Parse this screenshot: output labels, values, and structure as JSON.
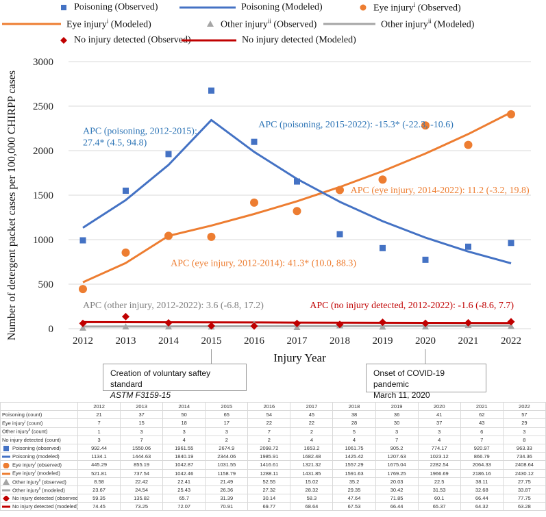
{
  "legend": [
    {
      "key": "poison_obs",
      "label": "Poisoning (Observed)",
      "sup": "",
      "marker": "square",
      "color": "#4472C4"
    },
    {
      "key": "poison_mod",
      "label": "Poisoning (Modeled)",
      "sup": "",
      "marker": "line",
      "color": "#4472C4"
    },
    {
      "key": "eye_obs",
      "label": "Eye injury",
      "sup": "i",
      "suffix": " (Observed)",
      "marker": "circle",
      "color": "#ED7D31"
    },
    {
      "key": "eye_mod",
      "label": "Eye injury",
      "sup": "i",
      "suffix": " (Modeled)",
      "marker": "line",
      "color": "#ED7D31"
    },
    {
      "key": "other_obs",
      "label": "Other injury",
      "sup": "ii",
      "suffix": " (Observed)",
      "marker": "triangle",
      "color": "#A5A5A5"
    },
    {
      "key": "other_mod",
      "label": "Other injury",
      "sup": "ii",
      "suffix": " (Modeled)",
      "marker": "line",
      "color": "#A5A5A5"
    },
    {
      "key": "noinj_obs",
      "label": "No injury detected (Observed)",
      "sup": "",
      "marker": "diamond",
      "color": "#C00000"
    },
    {
      "key": "noinj_mod",
      "label": "No injury detected (Modeled)",
      "sup": "",
      "marker": "line",
      "color": "#C00000"
    }
  ],
  "chart_data": {
    "type": "line",
    "x": [
      2012,
      2013,
      2014,
      2015,
      2016,
      2017,
      2018,
      2019,
      2020,
      2021,
      2022
    ],
    "xlabel": "Injury Year",
    "ylabel": "Number of detergent packet cases per 100,000 CHIRPP cases",
    "ylim": [
      0,
      3000
    ],
    "yticks": [
      0,
      500,
      1000,
      1500,
      2000,
      2500,
      3000
    ],
    "series": [
      {
        "name": "Poisoning (Observed)",
        "kind": "scatter",
        "marker": "square",
        "color": "#4472C4",
        "values": [
          992.44,
          1550.06,
          1961.55,
          2674.9,
          2098.72,
          1653.2,
          1061.75,
          905.2,
          774.17,
          920.97,
          963.33
        ]
      },
      {
        "name": "Poisoning (Modeled)",
        "kind": "line",
        "color": "#4472C4",
        "values": [
          1134.1,
          1444.63,
          1840.19,
          2344.06,
          1985.91,
          1682.48,
          1425.42,
          1207.63,
          1023.12,
          866.79,
          734.36
        ]
      },
      {
        "name": "Eye injury (Observed)",
        "kind": "scatter",
        "marker": "circle",
        "color": "#ED7D31",
        "values": [
          445.29,
          855.19,
          1042.87,
          1031.55,
          1416.61,
          1321.32,
          1557.29,
          1675.04,
          2282.54,
          2064.33,
          2408.64
        ]
      },
      {
        "name": "Eye injury (Modeled)",
        "kind": "line",
        "color": "#ED7D31",
        "values": [
          521.81,
          737.54,
          1042.46,
          1158.79,
          1288.11,
          1431.85,
          1591.63,
          1769.25,
          1966.69,
          2186.16,
          2430.12
        ]
      },
      {
        "name": "Other injury (Observed)",
        "kind": "scatter",
        "marker": "triangle",
        "color": "#A5A5A5",
        "values": [
          8.58,
          22.42,
          22.41,
          21.49,
          52.55,
          15.02,
          35.2,
          20.03,
          22.5,
          38.11,
          27.75
        ]
      },
      {
        "name": "Other injury (Modeled)",
        "kind": "line",
        "color": "#A5A5A5",
        "values": [
          23.67,
          24.54,
          25.43,
          26.36,
          27.32,
          28.32,
          29.35,
          30.42,
          31.53,
          32.68,
          33.87
        ]
      },
      {
        "name": "No injury detected (Observed)",
        "kind": "scatter",
        "marker": "diamond",
        "color": "#C00000",
        "values": [
          59.35,
          135.82,
          65.7,
          31.39,
          30.14,
          58.3,
          47.64,
          71.85,
          60.1,
          66.44,
          77.75
        ]
      },
      {
        "name": "No injury detected (Modeled)",
        "kind": "line",
        "color": "#C00000",
        "values": [
          74.45,
          73.25,
          72.07,
          70.91,
          69.77,
          68.64,
          67.53,
          66.44,
          65.37,
          64.32,
          63.28
        ]
      }
    ],
    "annotations": [
      {
        "lines": [
          "APC (poisoning, 2012-2015):",
          "27.4* (4.5, 94.8)"
        ],
        "color": "#2E75B6",
        "at_year": 2012,
        "at_value": 2190
      },
      {
        "lines": [
          "APC (poisoning, 2015-2022): -15.3* (-22.3, -10.6)"
        ],
        "color": "#2E75B6",
        "at_year": 2016.1,
        "at_value": 2260
      },
      {
        "lines": [
          "APC (eye injury, 2014-2022): 11.2 (-3.2, 19.8)"
        ],
        "color": "#ED7D31",
        "at_year": 2018.25,
        "at_value": 1525
      },
      {
        "lines": [
          "APC (eye injury, 2012-2014): 41.3* (10.0, 88.3)"
        ],
        "color": "#ED7D31",
        "at_year": 2014.05,
        "at_value": 705
      },
      {
        "lines": [
          "APC (other injury, 2012-2022): 3.6 (-6.8, 17.2)"
        ],
        "color": "#7F7F7F",
        "at_year": 2012,
        "at_value": 230
      },
      {
        "lines": [
          "APC (no injury detected, 2012-2022): -1.6 (-8.6, 7.7)"
        ],
        "color": "#C00000",
        "at_year": 2017.3,
        "at_value": 230
      }
    ]
  },
  "callouts": {
    "standard": {
      "line1": "Creation of voluntary saftey standard",
      "line2": "ASTM F3159-15"
    },
    "covid": {
      "line1": "Onset of COVID-19 pandemic",
      "line2": "March 11, 2020"
    }
  },
  "table": {
    "years": [
      "2012",
      "2013",
      "2014",
      "2015",
      "2016",
      "2017",
      "2018",
      "2019",
      "2020",
      "2021",
      "2022"
    ],
    "rows": [
      {
        "label": "Poisoning (count)",
        "sup": "",
        "suffix": "",
        "marker": "",
        "color": "",
        "cells": [
          "21",
          "37",
          "50",
          "65",
          "54",
          "45",
          "38",
          "36",
          "41",
          "62",
          "57"
        ]
      },
      {
        "label": "Eye injury",
        "sup": "i",
        "suffix": " (count)",
        "marker": "",
        "color": "",
        "cells": [
          "7",
          "15",
          "18",
          "17",
          "22",
          "22",
          "28",
          "30",
          "37",
          "43",
          "29"
        ]
      },
      {
        "label": "Other injury",
        "sup": "ii",
        "suffix": " (count)",
        "marker": "",
        "color": "",
        "cells": [
          "1",
          "3",
          "3",
          "3",
          "7",
          "2",
          "5",
          "3",
          "3",
          "6",
          "3"
        ]
      },
      {
        "label": "No injury detected (count)",
        "sup": "",
        "suffix": "",
        "marker": "",
        "color": "",
        "cells": [
          "3",
          "7",
          "4",
          "2",
          "2",
          "4",
          "4",
          "7",
          "4",
          "7",
          "8"
        ]
      },
      {
        "label": "Poisoning (observed)",
        "sup": "",
        "suffix": "",
        "marker": "square",
        "color": "#4472C4",
        "cells": [
          "992.44",
          "1550.06",
          "1961.55",
          "2674.9",
          "2098.72",
          "1653.2",
          "1061.75",
          "905.2",
          "774.17",
          "920.97",
          "963.33"
        ]
      },
      {
        "label": "Poisoning (modeled)",
        "sup": "",
        "suffix": "",
        "marker": "line",
        "color": "#4472C4",
        "cells": [
          "1134.1",
          "1444.63",
          "1840.19",
          "2344.06",
          "1985.91",
          "1682.48",
          "1425.42",
          "1207.63",
          "1023.12",
          "866.79",
          "734.36"
        ]
      },
      {
        "label": "Eye injury",
        "sup": "i",
        "suffix": " (observed)",
        "marker": "circle",
        "color": "#ED7D31",
        "cells": [
          "445.29",
          "855.19",
          "1042.87",
          "1031.55",
          "1416.61",
          "1321.32",
          "1557.29",
          "1675.04",
          "2282.54",
          "2064.33",
          "2408.64"
        ]
      },
      {
        "label": "Eye injury",
        "sup": "i",
        "suffix": " (modeled)",
        "marker": "line",
        "color": "#ED7D31",
        "cells": [
          "521.81",
          "737.54",
          "1042.46",
          "1158.79",
          "1288.11",
          "1431.85",
          "1591.63",
          "1769.25",
          "1966.69",
          "2186.16",
          "2430.12"
        ]
      },
      {
        "label": "Other injury",
        "sup": "ii",
        "suffix": " (observed)",
        "marker": "triangle",
        "color": "#A5A5A5",
        "cells": [
          "8.58",
          "22.42",
          "22.41",
          "21.49",
          "52.55",
          "15.02",
          "35.2",
          "20.03",
          "22.5",
          "38.11",
          "27.75"
        ]
      },
      {
        "label": "Other injury",
        "sup": "ii",
        "suffix": " (modeled)",
        "marker": "line",
        "color": "#A5A5A5",
        "cells": [
          "23.67",
          "24.54",
          "25.43",
          "26.36",
          "27.32",
          "28.32",
          "29.35",
          "30.42",
          "31.53",
          "32.68",
          "33.87"
        ]
      },
      {
        "label": "No injury detected (observed)",
        "sup": "",
        "suffix": "",
        "marker": "diamond",
        "color": "#C00000",
        "cells": [
          "59.35",
          "135.82",
          "65.7",
          "31.39",
          "30.14",
          "58.3",
          "47.64",
          "71.85",
          "60.1",
          "66.44",
          "77.75"
        ]
      },
      {
        "label": "No injury detected (modeled)",
        "sup": "",
        "suffix": "",
        "marker": "line",
        "color": "#C00000",
        "cells": [
          "74.45",
          "73.25",
          "72.07",
          "70.91",
          "69.77",
          "68.64",
          "67.53",
          "66.44",
          "65.37",
          "64.32",
          "63.28"
        ]
      }
    ]
  }
}
